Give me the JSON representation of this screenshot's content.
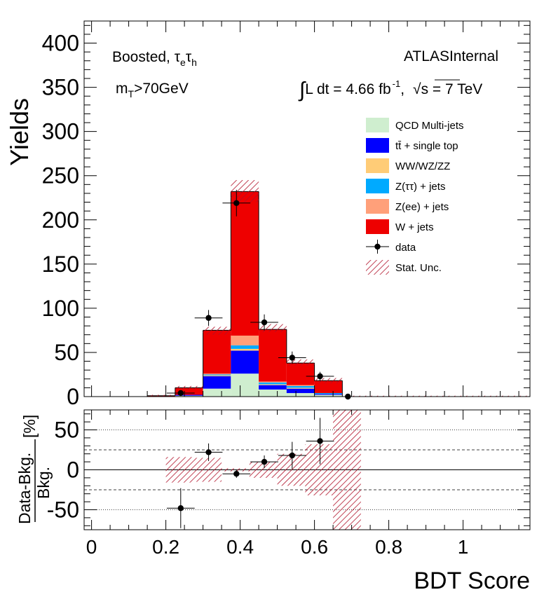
{
  "chart_data": [
    {
      "type": "bar",
      "stacked": true,
      "ylabel": "Yields",
      "xlim": [
        -0.02,
        1.18
      ],
      "ylim": [
        0,
        425
      ],
      "y_ticks": [
        "0",
        "50",
        "100",
        "150",
        "200",
        "250",
        "300",
        "350",
        "400"
      ],
      "bin_edges": [
        0.0,
        0.15,
        0.225,
        0.3,
        0.375,
        0.45,
        0.525,
        0.6,
        0.675,
        1.18
      ],
      "series": [
        {
          "name": "QCD Multi-jets",
          "color": "#cfeecf",
          "values": [
            0,
            0,
            1,
            9,
            26,
            8,
            4,
            2,
            0
          ]
        },
        {
          "name": "tt̄ + single top",
          "color": "#0000ff",
          "values": [
            0,
            0,
            1,
            14,
            26,
            5,
            5,
            1,
            0
          ]
        },
        {
          "name": "WW/WZ/ZZ",
          "color": "#ffcc77",
          "values": [
            0,
            0,
            0,
            1,
            2,
            1,
            1,
            0,
            0
          ]
        },
        {
          "name": "Z(ττ) + jets",
          "color": "#00aaff",
          "values": [
            0,
            0,
            0,
            1,
            4,
            2,
            2,
            1,
            0
          ]
        },
        {
          "name": "Z(ee) + jets",
          "color": "#ffa07a",
          "values": [
            0,
            0,
            0,
            1,
            11,
            1,
            1,
            0,
            0
          ]
        },
        {
          "name": "W + jets",
          "color": "#ee0000",
          "values": [
            0,
            1,
            8,
            49,
            163,
            59,
            25,
            14,
            0
          ]
        }
      ],
      "stat_unc": {
        "name": "Stat. Unc.",
        "low": [
          0,
          0.5,
          8,
          70,
          220,
          73,
          35,
          15,
          0
        ],
        "high": [
          0.3,
          2,
          12,
          79,
          245,
          82,
          42,
          21,
          1
        ]
      },
      "data": {
        "name": "data",
        "x": [
          0.24,
          0.315,
          0.39,
          0.465,
          0.54,
          0.615,
          0.69
        ],
        "y": [
          4,
          89,
          219,
          84,
          44,
          23,
          0
        ],
        "yerr": [
          2,
          9,
          15,
          9,
          7,
          5,
          1
        ]
      },
      "labels": {
        "channel": "Boosted, ",
        "channel_tau": "τ",
        "channel_sub1": "e",
        "channel_sub2": "h",
        "mt_m": "m",
        "mt_sub": "T",
        "mt_cut": ">70GeV",
        "experiment": "ATLASInternal",
        "lumi_int": "∫",
        "lumi_text": "L dt = 4.66 fb",
        "lumi_sup": "-1",
        "lumi_comma": ",",
        "sqrt": "√",
        "energy": "s = 7 TeV"
      }
    },
    {
      "type": "scatter",
      "xlabel": "BDT Score",
      "ylabel_top": "Data-Bkg.",
      "ylabel_bottom": "Bkg.",
      "ylabel_unit": "[%]",
      "xlim": [
        -0.02,
        1.18
      ],
      "ylim": [
        -75,
        75
      ],
      "x_ticks": [
        "0",
        "0.2",
        "0.4",
        "0.6",
        "0.8",
        "1"
      ],
      "y_ticks": [
        "-50",
        "0",
        "50"
      ],
      "reference_lines": {
        "solid": [
          0
        ],
        "dashed": [
          -25,
          25
        ],
        "dotted": [
          -50,
          50
        ]
      },
      "points": {
        "x": [
          0.24,
          0.315,
          0.39,
          0.465,
          0.54,
          0.615
        ],
        "y": [
          -48,
          22,
          -5,
          10,
          18,
          36
        ],
        "yerr": [
          25,
          11,
          5,
          8,
          17,
          29
        ]
      },
      "stat_band": {
        "edges": [
          0.2,
          0.275,
          0.35,
          0.425,
          0.5,
          0.575,
          0.65,
          0.725
        ],
        "half_width": [
          16,
          15,
          2,
          10,
          20,
          32,
          80
        ]
      }
    }
  ]
}
